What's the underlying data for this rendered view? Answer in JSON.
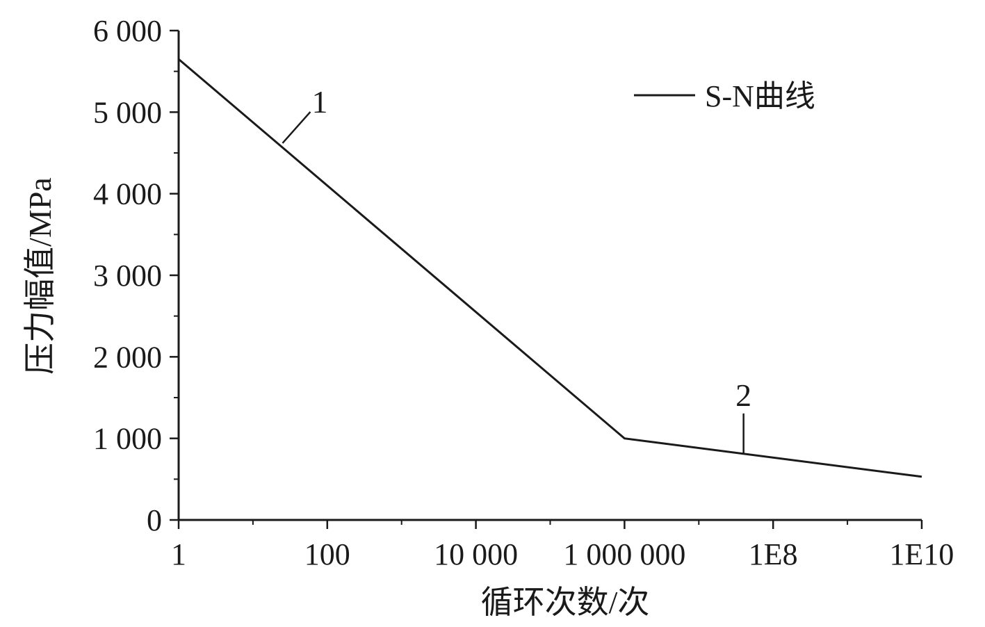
{
  "chart_data": {
    "type": "line",
    "x_scale": "log",
    "xlabel": "循环次数/次",
    "ylabel": "压力幅值/MPa",
    "xlim": [
      1,
      10000000000
    ],
    "ylim": [
      0,
      6000
    ],
    "x_ticks": [
      {
        "value": 1,
        "label": "1"
      },
      {
        "value": 100,
        "label": "100"
      },
      {
        "value": 10000,
        "label": "10 000"
      },
      {
        "value": 1000000,
        "label": "1 000 000"
      },
      {
        "value": 100000000,
        "label": "1E8"
      },
      {
        "value": 10000000000,
        "label": "1E10"
      }
    ],
    "x_minor_ticks": [
      10,
      1000,
      100000,
      10000000,
      1000000000
    ],
    "y_ticks": [
      {
        "value": 0,
        "label": "0"
      },
      {
        "value": 1000,
        "label": "1 000"
      },
      {
        "value": 2000,
        "label": "2 000"
      },
      {
        "value": 3000,
        "label": "3 000"
      },
      {
        "value": 4000,
        "label": "4 000"
      },
      {
        "value": 5000,
        "label": "5 000"
      },
      {
        "value": 6000,
        "label": "6 000"
      }
    ],
    "y_minor_ticks": [
      500,
      1500,
      2500,
      3500,
      4500,
      5500
    ],
    "series": [
      {
        "name": "S-N曲线",
        "color": "#1a1a1a",
        "points": [
          {
            "x": 1,
            "y": 5650
          },
          {
            "x": 1000000,
            "y": 1000
          },
          {
            "x": 10000000000,
            "y": 530
          }
        ]
      }
    ],
    "legend": {
      "position": "top-right",
      "label": "S-N曲线"
    },
    "annotations": [
      {
        "label": "1",
        "x": 25,
        "y": 4620
      },
      {
        "label": "2",
        "x": 40000000,
        "y": 820
      }
    ],
    "grid": false
  }
}
